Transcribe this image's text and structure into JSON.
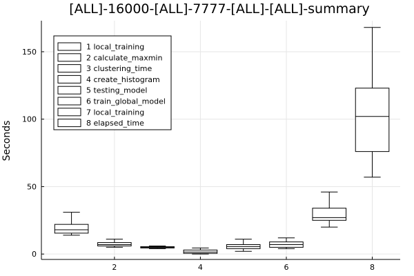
{
  "chart_data": {
    "type": "box",
    "title": "[ALL]-16000-[ALL]-7777-[ALL]-[ALL]-summary",
    "xlabel": "",
    "ylabel": "Seconds",
    "xlim": [
      0.3,
      8.65
    ],
    "ylim": [
      -4,
      173
    ],
    "xticks": [
      2,
      4,
      6,
      8
    ],
    "yticks": [
      0,
      50,
      100,
      150
    ],
    "grid": true,
    "legend_position": "top-left",
    "series": [
      {
        "name": "1 local_training",
        "x": 1,
        "min": 14,
        "q1": 15.5,
        "median": 18,
        "q3": 22,
        "max": 31
      },
      {
        "name": "2 calculate_maxmin",
        "x": 2,
        "min": 5,
        "q1": 6,
        "median": 7,
        "q3": 8.5,
        "max": 11
      },
      {
        "name": "3 clustering_time",
        "x": 3,
        "min": 4,
        "q1": 4.5,
        "median": 5,
        "q3": 5.5,
        "max": 6
      },
      {
        "name": "4 create_histogram",
        "x": 4,
        "min": 0,
        "q1": 0.5,
        "median": 1.5,
        "q3": 3,
        "max": 4.5
      },
      {
        "name": "5 testing_model",
        "x": 5,
        "min": 2,
        "q1": 4,
        "median": 5.5,
        "q3": 7,
        "max": 11
      },
      {
        "name": "6 train_global_model",
        "x": 6,
        "min": 4,
        "q1": 5,
        "median": 7,
        "q3": 9,
        "max": 12
      },
      {
        "name": "7 local_training",
        "x": 7,
        "min": 20,
        "q1": 25,
        "median": 27,
        "q3": 34,
        "max": 46
      },
      {
        "name": "8 elapsed_time",
        "x": 8,
        "min": 57,
        "q1": 76,
        "median": 102,
        "q3": 123,
        "max": 168
      }
    ]
  }
}
